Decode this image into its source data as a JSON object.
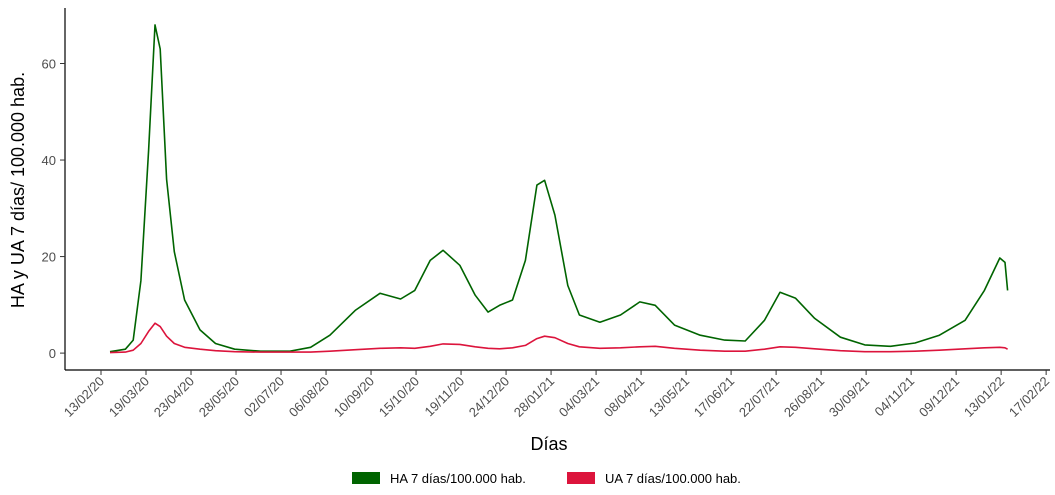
{
  "chart_data": {
    "type": "line",
    "x_label": "Días",
    "y_label": "HA y UA 7 días/ 100.000 hab.",
    "x": [
      "20/02/20",
      "03/03/20",
      "09/03/20",
      "15/03/20",
      "21/03/20",
      "26/03/20",
      "30/03/20",
      "04/04/20",
      "10/04/20",
      "18/04/20",
      "30/04/20",
      "12/05/20",
      "27/05/20",
      "16/06/20",
      "09/07/20",
      "25/07/20",
      "09/08/20",
      "29/08/20",
      "17/09/20",
      "03/10/20",
      "14/10/20",
      "26/10/20",
      "05/11/20",
      "18/11/20",
      "30/11/20",
      "10/12/20",
      "19/12/20",
      "29/12/20",
      "08/01/21",
      "17/01/21",
      "23/01/21",
      "31/01/21",
      "10/02/21",
      "19/02/21",
      "07/03/21",
      "23/03/21",
      "07/04/21",
      "19/04/21",
      "04/05/21",
      "24/05/21",
      "12/06/21",
      "28/06/21",
      "13/07/21",
      "25/07/21",
      "06/08/21",
      "21/08/21",
      "10/09/21",
      "29/09/21",
      "19/10/21",
      "07/11/21",
      "26/11/21",
      "16/12/21",
      "31/12/21",
      "12/01/22",
      "16/01/22",
      "18/01/22"
    ],
    "series": [
      {
        "name": "HA 7 días/100.000 hab.",
        "color": "#006400",
        "values": [
          0.3,
          0.8,
          2.7,
          15,
          42,
          68,
          63,
          36,
          21,
          11,
          4.8,
          2,
          0.8,
          0.4,
          0.4,
          1.2,
          3.7,
          8.9,
          12.4,
          11.2,
          13,
          19.2,
          21.3,
          18.2,
          12,
          8.5,
          9.9,
          11,
          19.2,
          34.8,
          35.8,
          28.6,
          14,
          7.9,
          6.4,
          7.9,
          10.6,
          9.9,
          5.8,
          3.7,
          2.7,
          2.5,
          6.8,
          12.6,
          11.4,
          7.2,
          3.3,
          1.7,
          1.4,
          2.1,
          3.7,
          6.8,
          13,
          19.7,
          18.8,
          13
        ]
      },
      {
        "name": "UA 7 días/100.000 hab.",
        "color": "#dc143c",
        "values": [
          0.1,
          0.2,
          0.6,
          2,
          4.5,
          6.2,
          5.5,
          3.5,
          2,
          1.2,
          0.8,
          0.5,
          0.3,
          0.2,
          0.2,
          0.2,
          0.4,
          0.7,
          1.0,
          1.1,
          1.0,
          1.4,
          1.9,
          1.8,
          1.3,
          1.0,
          0.9,
          1.1,
          1.6,
          3.0,
          3.5,
          3.2,
          2.0,
          1.3,
          1.0,
          1.1,
          1.3,
          1.4,
          1.0,
          0.6,
          0.4,
          0.4,
          0.8,
          1.3,
          1.2,
          0.9,
          0.5,
          0.3,
          0.3,
          0.4,
          0.6,
          0.9,
          1.1,
          1.2,
          1.1,
          0.8
        ]
      }
    ],
    "xlim": [
      "16/01/20",
      "20/02/22"
    ],
    "xticks": [
      "13/02/20",
      "19/03/20",
      "23/04/20",
      "28/05/20",
      "02/07/20",
      "06/08/20",
      "10/09/20",
      "15/10/20",
      "19/11/20",
      "24/12/20",
      "28/01/21",
      "04/03/21",
      "08/04/21",
      "13/05/21",
      "17/06/21",
      "22/07/21",
      "26/08/21",
      "30/09/21",
      "04/11/21",
      "09/12/21",
      "13/01/22",
      "17/02/22"
    ],
    "ylim": [
      -3.5,
      71.5
    ],
    "yticks": [
      0,
      20,
      40,
      60
    ],
    "grid": false,
    "legend": "bottom"
  }
}
